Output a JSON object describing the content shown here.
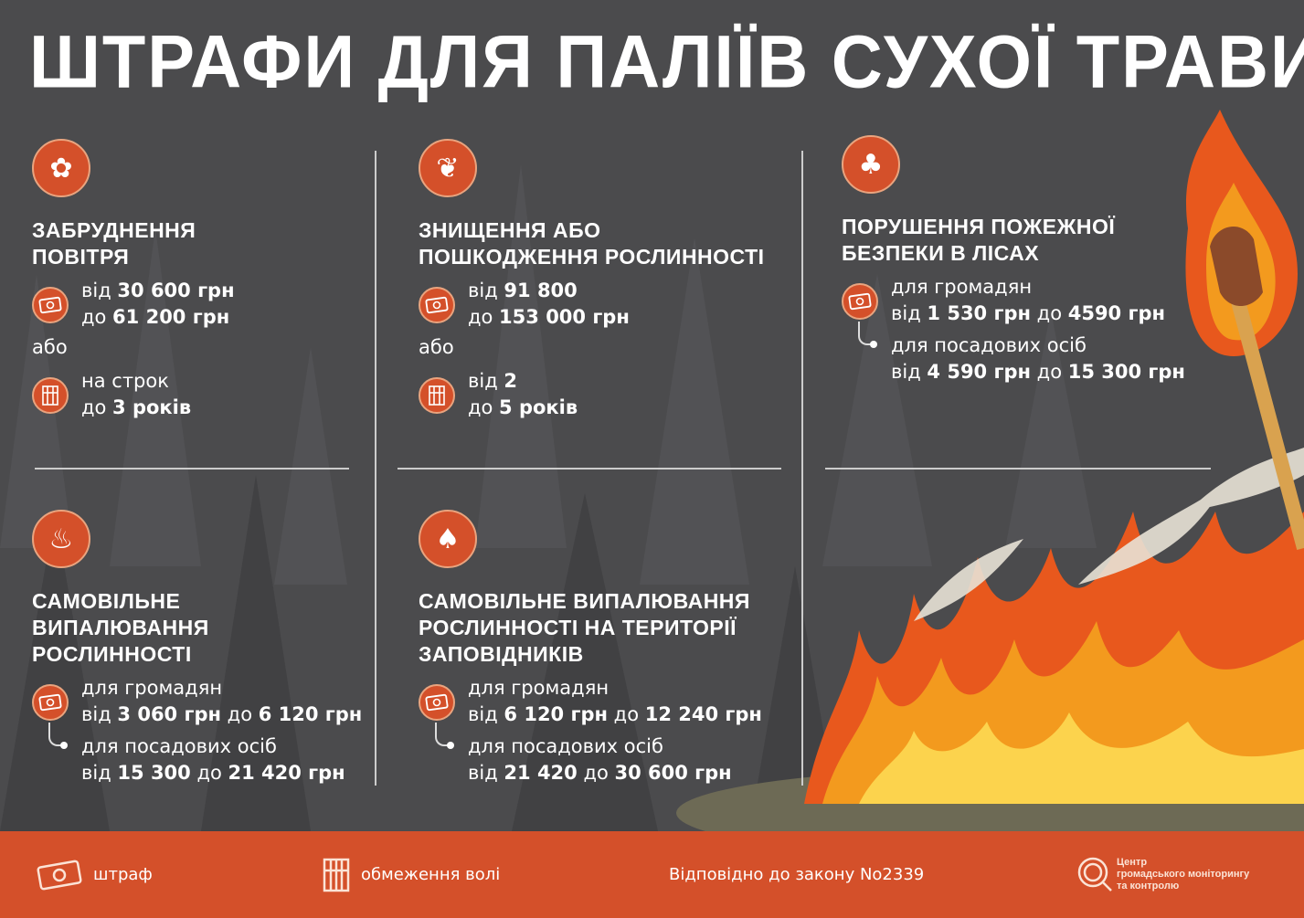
{
  "title": "ШТРАФИ ДЛЯ ПАЛІЇВ СУХОЇ ТРАВИ",
  "colors": {
    "background": "#4b4b4d",
    "accent": "#d4502a",
    "text": "#ffffff"
  },
  "sections": [
    {
      "icon": "smoke-pollution-icon",
      "title": [
        "ЗАБРУДНЕННЯ",
        "ПОВІТРЯ"
      ],
      "groups": [
        {
          "icon": "money-icon",
          "lines": [
            [
              [
                "від ",
                0
              ],
              [
                "30 600 грн",
                1
              ]
            ],
            [
              [
                "до ",
                0
              ],
              [
                "61 200 грн",
                1
              ]
            ]
          ]
        },
        {
          "separator": "або"
        },
        {
          "icon": "prison-bars-icon",
          "lines": [
            [
              [
                "на строк",
                0
              ]
            ],
            [
              [
                "до ",
                0
              ],
              [
                "3 років",
                1
              ]
            ]
          ]
        }
      ]
    },
    {
      "icon": "grass-icon",
      "title": [
        "ЗНИЩЕННЯ АБО",
        "ПОШКОДЖЕННЯ РОСЛИННОСТІ"
      ],
      "groups": [
        {
          "icon": "money-icon",
          "lines": [
            [
              [
                "від ",
                0
              ],
              [
                "91 800",
                1
              ]
            ],
            [
              [
                "до ",
                0
              ],
              [
                "153 000 грн",
                1
              ]
            ]
          ]
        },
        {
          "separator": "або"
        },
        {
          "icon": "prison-bars-icon",
          "lines": [
            [
              [
                "від ",
                0
              ],
              [
                "2",
                1
              ]
            ],
            [
              [
                "до ",
                0
              ],
              [
                "5 років",
                1
              ]
            ]
          ]
        }
      ]
    },
    {
      "icon": "forest-trees-icon",
      "title": [
        "ПОРУШЕННЯ ПОЖЕЖНОЇ",
        "БЕЗПЕКИ В ЛІСАХ"
      ],
      "groups": [
        {
          "icon": "money-icon",
          "connector": true,
          "lines": [
            [
              [
                "для громадян",
                0
              ]
            ],
            [
              [
                "від ",
                0
              ],
              [
                "1 530 грн",
                1
              ],
              [
                " до ",
                0
              ],
              [
                "4590 грн",
                1
              ]
            ],
            [
              [
                "для посадових осіб",
                0
              ]
            ],
            [
              [
                "від ",
                0
              ],
              [
                "4 590 грн",
                1
              ],
              [
                " до ",
                0
              ],
              [
                "15 300 грн",
                1
              ]
            ]
          ]
        }
      ]
    },
    {
      "icon": "fire-icon",
      "title": [
        "САМОВІЛЬНЕ",
        "ВИПАЛЮВАННЯ",
        "РОСЛИННОСТІ"
      ],
      "groups": [
        {
          "icon": "money-icon",
          "connector": true,
          "lines": [
            [
              [
                "для громадян",
                0
              ]
            ],
            [
              [
                "від ",
                0
              ],
              [
                "3 060 грн",
                1
              ],
              [
                " до ",
                0
              ],
              [
                "6 120 грн",
                1
              ]
            ],
            [
              [
                "для посадових осіб",
                0
              ]
            ],
            [
              [
                "від ",
                0
              ],
              [
                "15 300",
                1
              ],
              [
                " до ",
                0
              ],
              [
                "21 420 грн",
                1
              ]
            ]
          ]
        }
      ]
    },
    {
      "icon": "burning-tree-icon",
      "title": [
        "САМОВІЛЬНЕ ВИПАЛЮВАННЯ",
        "РОСЛИННОСТІ НА ТЕРИТОРІЇ",
        "ЗАПОВІДНИКІВ"
      ],
      "groups": [
        {
          "icon": "money-icon",
          "connector": true,
          "lines": [
            [
              [
                "для громадян",
                0
              ]
            ],
            [
              [
                "від ",
                0
              ],
              [
                "6 120 грн",
                1
              ],
              [
                " до ",
                0
              ],
              [
                "12 240 грн",
                1
              ]
            ],
            [
              [
                "для посадових осіб",
                0
              ]
            ],
            [
              [
                "від ",
                0
              ],
              [
                "21 420",
                1
              ],
              [
                " до ",
                0
              ],
              [
                "30 600 грн",
                1
              ]
            ]
          ]
        }
      ]
    }
  ],
  "footer": {
    "fine_label": "штраф",
    "prison_label": "обмеження волі",
    "law": "Відповідно до закону No2339",
    "logo": [
      "Центр",
      "громадського моніторингу",
      "та контролю"
    ]
  }
}
